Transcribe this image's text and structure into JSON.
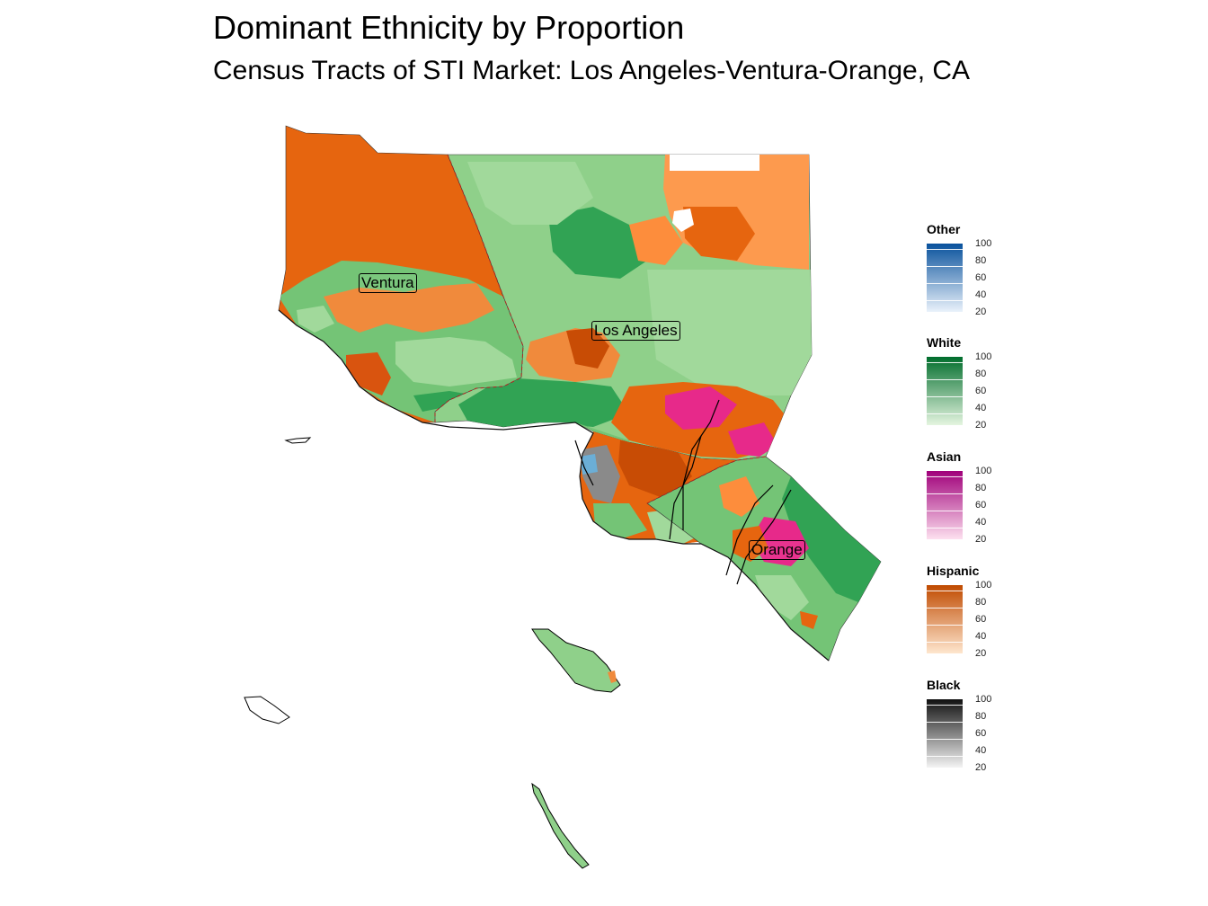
{
  "title": "Dominant Ethnicity by Proportion",
  "subtitle": "Census Tracts of STI Market: Los Angeles-Ventura-Orange, CA",
  "map_labels": {
    "ventura": "Ventura",
    "los_angeles": "Los Angeles",
    "orange": "Orange"
  },
  "legend": [
    {
      "title": "Other",
      "low_color": "#eaf2fb",
      "high_color": "#08519c",
      "ticks": [
        "100",
        "80",
        "60",
        "40",
        "20"
      ]
    },
    {
      "title": "White",
      "low_color": "#e5f5e0",
      "high_color": "#006d2c",
      "ticks": [
        "100",
        "80",
        "60",
        "40",
        "20"
      ]
    },
    {
      "title": "Asian",
      "low_color": "#fde0ef",
      "high_color": "#a0007a",
      "ticks": [
        "100",
        "80",
        "60",
        "40",
        "20"
      ]
    },
    {
      "title": "Hispanic",
      "low_color": "#fee6ce",
      "high_color": "#c04a00",
      "ticks": [
        "100",
        "80",
        "60",
        "40",
        "20"
      ]
    },
    {
      "title": "Black",
      "low_color": "#f4f4f4",
      "high_color": "#111111",
      "ticks": [
        "100",
        "80",
        "60",
        "40",
        "20"
      ]
    }
  ],
  "colors": {
    "white_light": "#a1d99b",
    "white_mid": "#74c476",
    "white_dark": "#31a354",
    "hispanic_light": "#fd8d3c",
    "hispanic_dark": "#e6550d",
    "hispanic_deep": "#b84000",
    "asian": "#e7298a",
    "asian_light": "#f59dc4",
    "black": "#737373",
    "other": "#6baed6"
  }
}
